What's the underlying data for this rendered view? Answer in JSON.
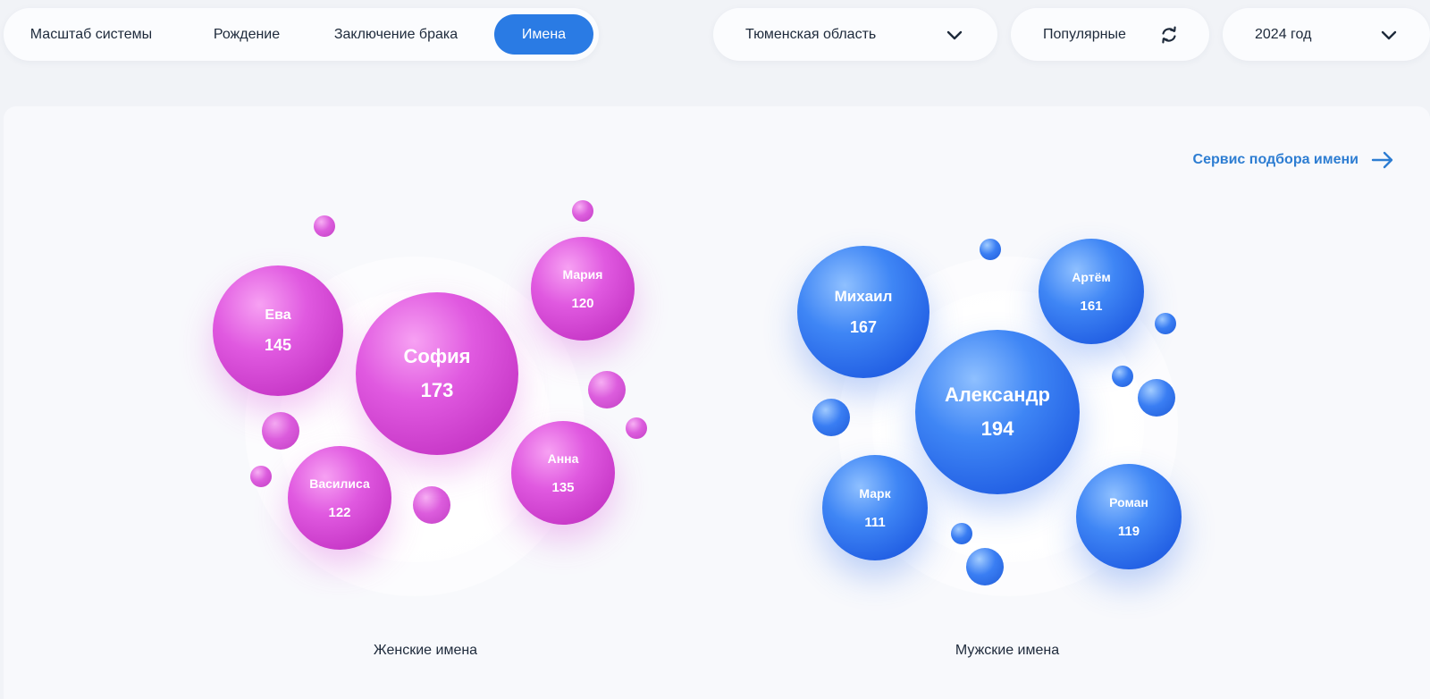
{
  "tabs": [
    {
      "label": "Масштаб системы",
      "active": false
    },
    {
      "label": "Рождение",
      "active": false
    },
    {
      "label": "Заключение брака",
      "active": false
    },
    {
      "label": "Имена",
      "active": true
    }
  ],
  "filters": {
    "region": {
      "label": "Тюменская область",
      "icon": "chevron-down-icon"
    },
    "sort": {
      "label": "Популярные",
      "icon": "refresh-icon"
    },
    "year": {
      "label": "2024 год",
      "icon": "chevron-down-icon"
    }
  },
  "service_link": {
    "label": "Сервис подбора имени",
    "icon": "arrow-right-icon"
  },
  "colors": {
    "accent": "#2a7be4",
    "link": "#2d7dd2",
    "female": "#d94ad9",
    "male": "#2f6fee"
  },
  "female": {
    "caption": "Женские имена",
    "names": [
      {
        "name": "София",
        "count": "173"
      },
      {
        "name": "Ева",
        "count": "145"
      },
      {
        "name": "Анна",
        "count": "135"
      },
      {
        "name": "Василиса",
        "count": "122"
      },
      {
        "name": "Мария",
        "count": "120"
      }
    ]
  },
  "male": {
    "caption": "Мужские имена",
    "names": [
      {
        "name": "Александр",
        "count": "194"
      },
      {
        "name": "Михаил",
        "count": "167"
      },
      {
        "name": "Артём",
        "count": "161"
      },
      {
        "name": "Роман",
        "count": "119"
      },
      {
        "name": "Марк",
        "count": "111"
      }
    ]
  }
}
